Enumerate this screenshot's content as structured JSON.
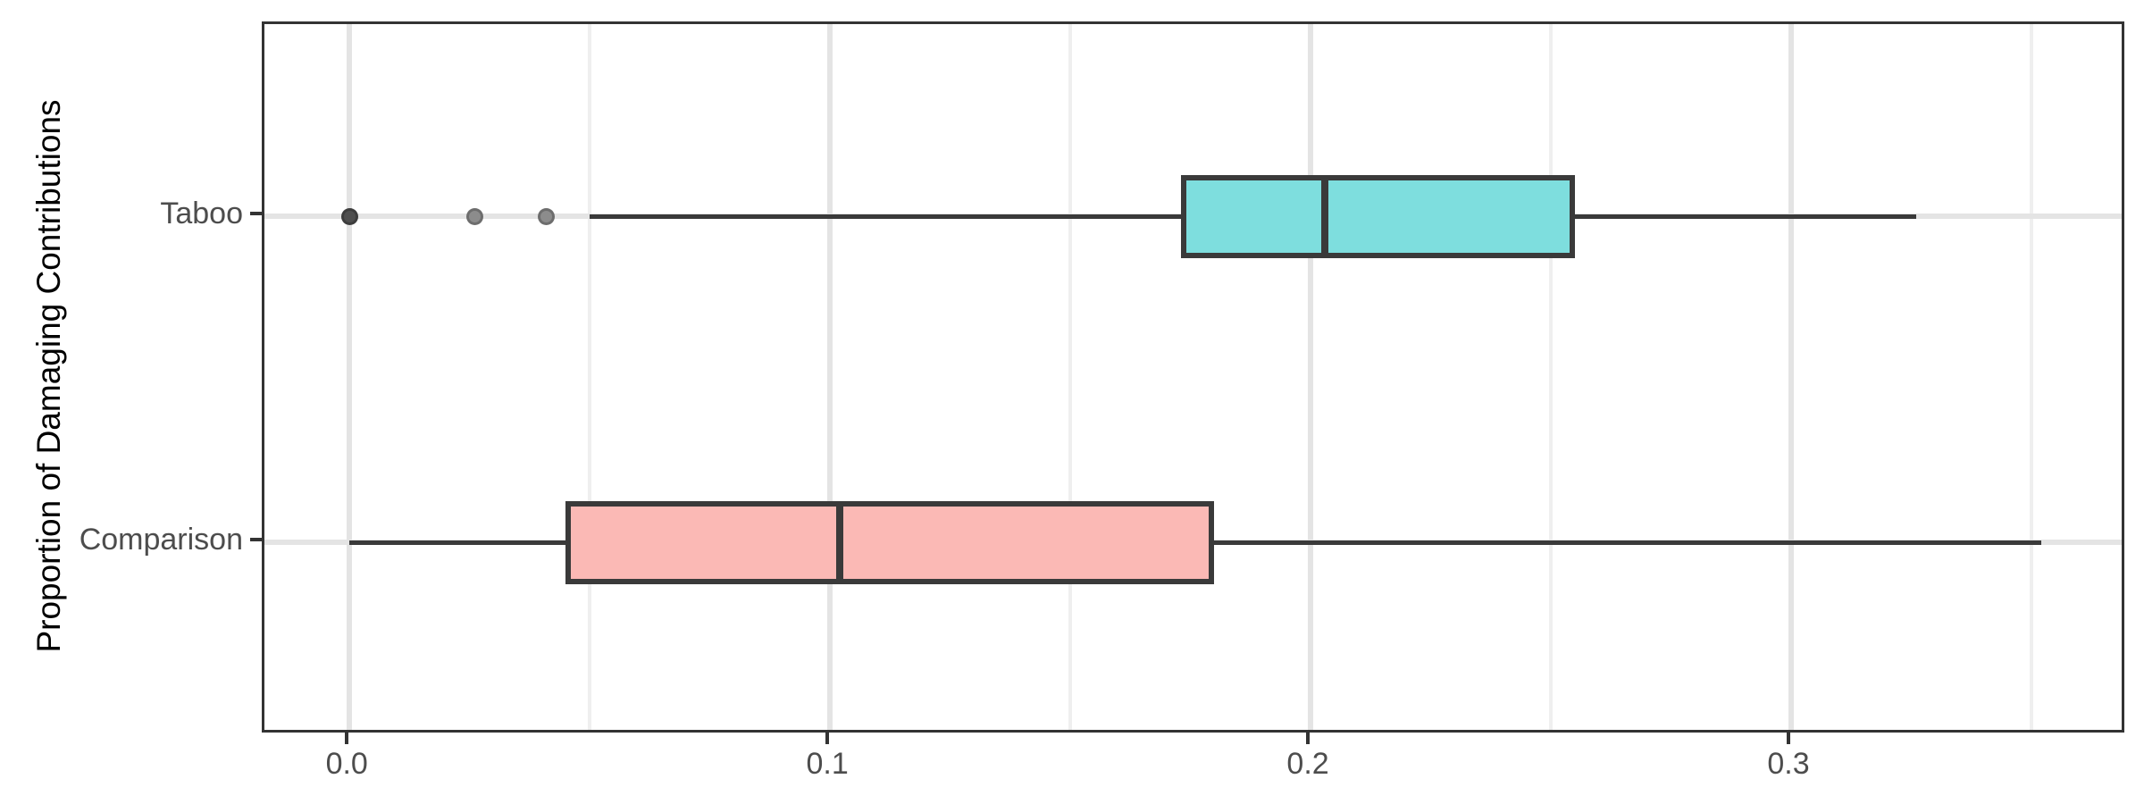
{
  "chart_data": {
    "type": "boxplot",
    "orientation": "horizontal",
    "title": "",
    "xlabel": "",
    "ylabel": "Proportion of Damaging Contributions",
    "legend_position": "none",
    "grid": true,
    "categories": [
      "Taboo",
      "Comparison"
    ],
    "x_axis": {
      "tick_values": [
        0.0,
        0.1,
        0.2,
        0.3
      ],
      "tick_labels": [
        "0.0",
        "0.1",
        "0.2",
        "0.3"
      ],
      "minor_gridlines": [
        0.05,
        0.15,
        0.25,
        0.35
      ],
      "xlim": [
        -0.0177,
        0.3699
      ]
    },
    "series": [
      {
        "name": "Taboo",
        "whisker_low": 0.05,
        "q1": 0.173,
        "median": 0.203,
        "q3": 0.255,
        "whisker_high": 0.326,
        "fill": "#7EDEDE",
        "outliers": [
          {
            "value": 0.0,
            "color": "#4F4F4F"
          },
          {
            "value": 0.026,
            "color": "#8C8C8C"
          },
          {
            "value": 0.041,
            "color": "#8C8C8C"
          }
        ]
      },
      {
        "name": "Comparison",
        "whisker_low": 0.0,
        "q1": 0.045,
        "median": 0.102,
        "q3": 0.18,
        "whisker_high": 0.352,
        "fill": "#FBB9B5",
        "outliers": []
      }
    ],
    "colors": {
      "stroke": "#3A3A3A",
      "grid_major": "#E4E4E4",
      "grid_minor": "#EFEFEF",
      "axis_text": "#4D4D4D",
      "title_text": "#000000",
      "panel_border": "#333333",
      "background": "#FFFFFF"
    }
  }
}
